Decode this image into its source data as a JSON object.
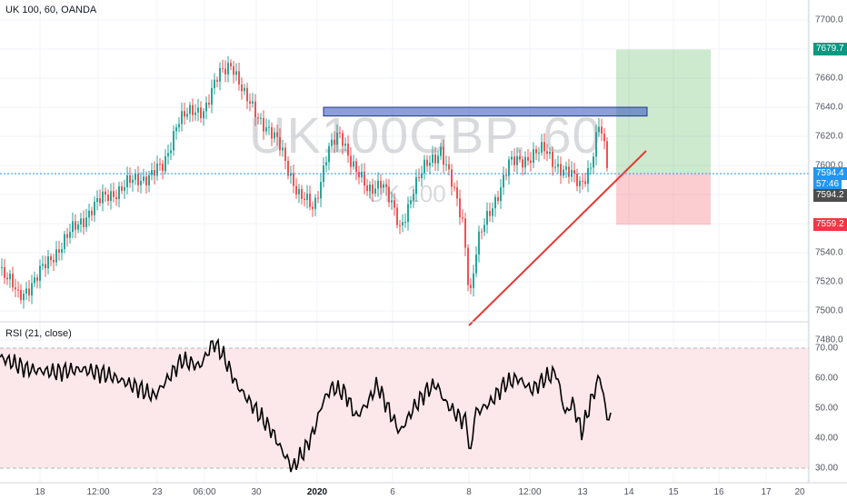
{
  "header": {
    "title": "UK 100, 60, OANDA"
  },
  "watermark": {
    "symbol": "UK100GBP, 60",
    "name": "UK 100"
  },
  "rsi": {
    "title": "RSI (21, close)",
    "axis_labels": [
      "70.00",
      "60.00",
      "50.00",
      "40.00",
      "30.00"
    ],
    "upper_band": 70,
    "lower_band": 30
  },
  "price_axis": {
    "labels": [
      "7700.0",
      "7660.0",
      "7640.0",
      "7620.0",
      "7600.0",
      "7540.0",
      "7520.0",
      "7500.0",
      "7480.0"
    ],
    "tags": {
      "target": {
        "value": "7679.7",
        "color": "#089981"
      },
      "last": {
        "value": "7594.4",
        "color": "#2196f3"
      },
      "countdown": {
        "value": "57:46",
        "color": "#2196f3"
      },
      "entry": {
        "value": "7594.2",
        "color": "#4d4d4d"
      },
      "stop": {
        "value": "7559.2",
        "color": "#f23645"
      }
    }
  },
  "time_axis": {
    "labels": [
      {
        "text": "18",
        "bold": false
      },
      {
        "text": "12:00",
        "bold": false
      },
      {
        "text": "23",
        "bold": false
      },
      {
        "text": "06:00",
        "bold": false
      },
      {
        "text": "30",
        "bold": false
      },
      {
        "text": "2020",
        "bold": true
      },
      {
        "text": "6",
        "bold": false
      },
      {
        "text": "8",
        "bold": false
      },
      {
        "text": "12:00",
        "bold": false
      },
      {
        "text": "13",
        "bold": false
      },
      {
        "text": "14",
        "bold": false
      },
      {
        "text": "15",
        "bold": false
      },
      {
        "text": "16",
        "bold": false
      },
      {
        "text": "17",
        "bold": false
      },
      {
        "text": "20",
        "bold": false
      }
    ]
  },
  "drawings": {
    "resistance_zone": {
      "from": 7640,
      "to": 7634,
      "color": "#3f5fbf"
    },
    "trendline": {
      "start_price": 7490,
      "end_price": 7610,
      "color": "#e53935"
    },
    "position": {
      "target": 7679.7,
      "entry": 7594.2,
      "stop": 7559.2
    }
  },
  "colors": {
    "up": "#26a69a",
    "down": "#ef5350",
    "grid": "#f0f3fa",
    "rsi": "#000000",
    "rsi_band": "#fce8ea"
  }
}
